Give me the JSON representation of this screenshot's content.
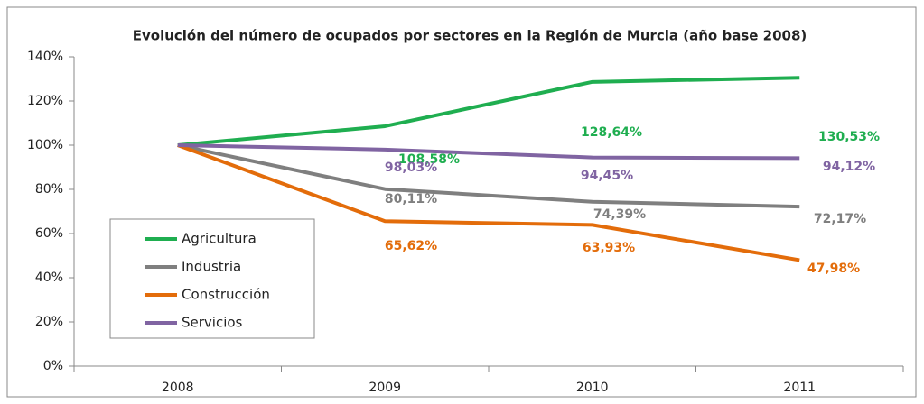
{
  "chart_data": {
    "type": "line",
    "title": "Evolución del número de ocupados por sectores en la Región de Murcia (año base 2008)",
    "categories": [
      "2008",
      "2009",
      "2010",
      "2011"
    ],
    "series": [
      {
        "name": "Agricultura",
        "color": "#1fae50",
        "values": [
          100,
          108.58,
          128.64,
          130.53
        ],
        "value_labels": [
          null,
          "108,58%",
          "128,64%",
          "130,53%"
        ]
      },
      {
        "name": "Industria",
        "color": "#7f7f7f",
        "values": [
          100,
          80.11,
          74.39,
          72.17
        ],
        "value_labels": [
          null,
          "80,11%",
          "74,39%",
          "72,17%"
        ]
      },
      {
        "name": "Construcción",
        "color": "#e36c0a",
        "values": [
          100,
          65.62,
          63.93,
          47.98
        ],
        "value_labels": [
          null,
          "65,62%",
          "63,93%",
          "47,98%"
        ]
      },
      {
        "name": "Servicios",
        "color": "#8064a2",
        "values": [
          100,
          98.03,
          94.45,
          94.12
        ],
        "value_labels": [
          null,
          "98,03%",
          "94,45%",
          "94,12%"
        ]
      }
    ],
    "ylim": [
      0,
      140
    ],
    "yticks": [
      {
        "value": 0,
        "label": "0%"
      },
      {
        "value": 20,
        "label": "20%"
      },
      {
        "value": 40,
        "label": "40%"
      },
      {
        "value": 60,
        "label": "60%"
      },
      {
        "value": 80,
        "label": "80%"
      },
      {
        "value": 100,
        "label": "100%"
      },
      {
        "value": 120,
        "label": "120%"
      },
      {
        "value": 140,
        "label": "140%"
      }
    ],
    "grid": false
  }
}
